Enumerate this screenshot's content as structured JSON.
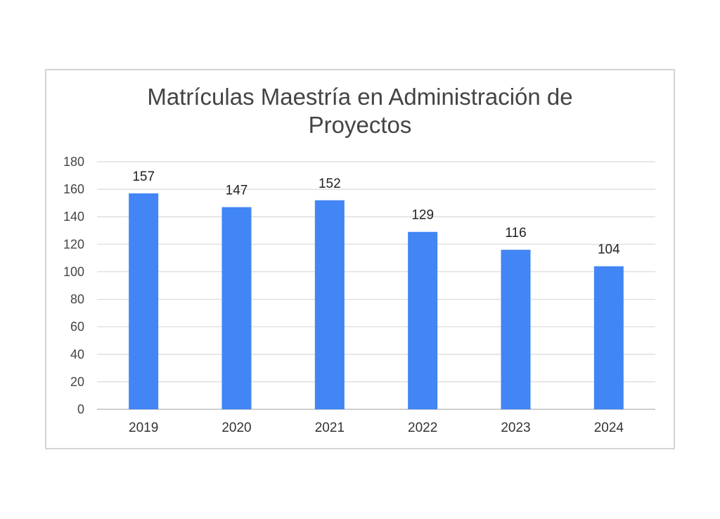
{
  "chart_data": {
    "type": "bar",
    "title": "Matrículas Maestría en Administración de Proyectos",
    "title_lines": [
      "Matrículas Maestría en Administración de",
      "Proyectos"
    ],
    "categories": [
      "2019",
      "2020",
      "2021",
      "2022",
      "2023",
      "2024"
    ],
    "values": [
      157,
      147,
      152,
      129,
      116,
      104
    ],
    "data_labels": [
      "157",
      "147",
      "152",
      "129",
      "116",
      "104"
    ],
    "xlabel": "",
    "ylabel": "",
    "ylim": [
      0,
      180
    ],
    "yticks": [
      "0",
      "20",
      "40",
      "60",
      "80",
      "100",
      "120",
      "140",
      "160",
      "180"
    ],
    "grid": true,
    "legend": "none",
    "colors": {
      "bar": "#4285f4",
      "grid": "#d9d9d9",
      "axis": "#bdbdbd"
    }
  }
}
